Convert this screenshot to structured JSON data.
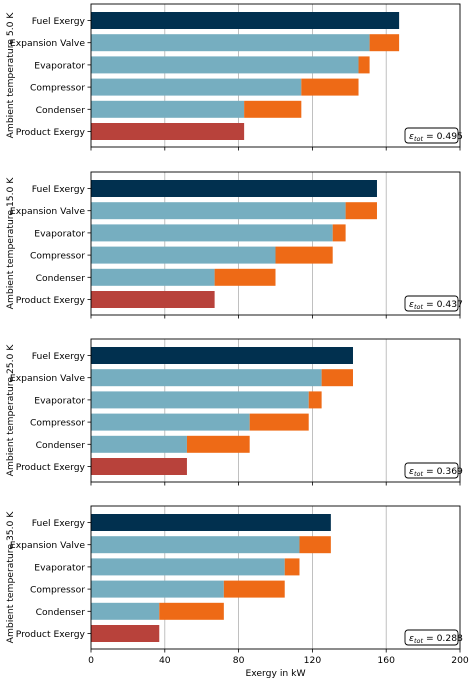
{
  "chart_data": {
    "type": "bar",
    "orientation": "horizontal-stacked",
    "x_axis": {
      "label": "Exergy in kW",
      "lim": [
        0,
        200
      ],
      "ticks": [
        0,
        40,
        80,
        120,
        160,
        200
      ],
      "grid": true
    },
    "categories": [
      "Fuel Exergy",
      "Expansion Valve",
      "Evaporator",
      "Compressor",
      "Condenser",
      "Product Exergy"
    ],
    "colors": {
      "fuel": "#01304f",
      "base": "#76aec0",
      "loss": "#ee6a16",
      "product": "#b8423b"
    },
    "panels": [
      {
        "ylabel": "Ambient temperature 5.0 K",
        "efficiency_label": "0.495",
        "bars": [
          {
            "category": "Fuel Exergy",
            "kind": "fuel",
            "value": 167
          },
          {
            "category": "Expansion Valve",
            "kind": "stack",
            "base": 151,
            "loss": 16
          },
          {
            "category": "Evaporator",
            "kind": "stack",
            "base": 145,
            "loss": 6
          },
          {
            "category": "Compressor",
            "kind": "stack",
            "base": 114,
            "loss": 31
          },
          {
            "category": "Condenser",
            "kind": "stack",
            "base": 83,
            "loss": 31
          },
          {
            "category": "Product Exergy",
            "kind": "product",
            "value": 83
          }
        ]
      },
      {
        "ylabel": "Ambient temperature 15.0 K",
        "efficiency_label": "0.437",
        "bars": [
          {
            "category": "Fuel Exergy",
            "kind": "fuel",
            "value": 155
          },
          {
            "category": "Expansion Valve",
            "kind": "stack",
            "base": 138,
            "loss": 17
          },
          {
            "category": "Evaporator",
            "kind": "stack",
            "base": 131,
            "loss": 7
          },
          {
            "category": "Compressor",
            "kind": "stack",
            "base": 100,
            "loss": 31
          },
          {
            "category": "Condenser",
            "kind": "stack",
            "base": 67,
            "loss": 33
          },
          {
            "category": "Product Exergy",
            "kind": "product",
            "value": 67
          }
        ]
      },
      {
        "ylabel": "Ambient temperature 25.0 K",
        "efficiency_label": "0.369",
        "bars": [
          {
            "category": "Fuel Exergy",
            "kind": "fuel",
            "value": 142
          },
          {
            "category": "Expansion Valve",
            "kind": "stack",
            "base": 125,
            "loss": 17
          },
          {
            "category": "Evaporator",
            "kind": "stack",
            "base": 118,
            "loss": 7
          },
          {
            "category": "Compressor",
            "kind": "stack",
            "base": 86,
            "loss": 32
          },
          {
            "category": "Condenser",
            "kind": "stack",
            "base": 52,
            "loss": 34
          },
          {
            "category": "Product Exergy",
            "kind": "product",
            "value": 52
          }
        ]
      },
      {
        "ylabel": "Ambient temperature 35.0 K",
        "efficiency_label": "0.288",
        "bars": [
          {
            "category": "Fuel Exergy",
            "kind": "fuel",
            "value": 130
          },
          {
            "category": "Expansion Valve",
            "kind": "stack",
            "base": 113,
            "loss": 17
          },
          {
            "category": "Evaporator",
            "kind": "stack",
            "base": 105,
            "loss": 8
          },
          {
            "category": "Compressor",
            "kind": "stack",
            "base": 72,
            "loss": 33
          },
          {
            "category": "Condenser",
            "kind": "stack",
            "base": 37,
            "loss": 35
          },
          {
            "category": "Product Exergy",
            "kind": "product",
            "value": 37
          }
        ]
      }
    ]
  }
}
